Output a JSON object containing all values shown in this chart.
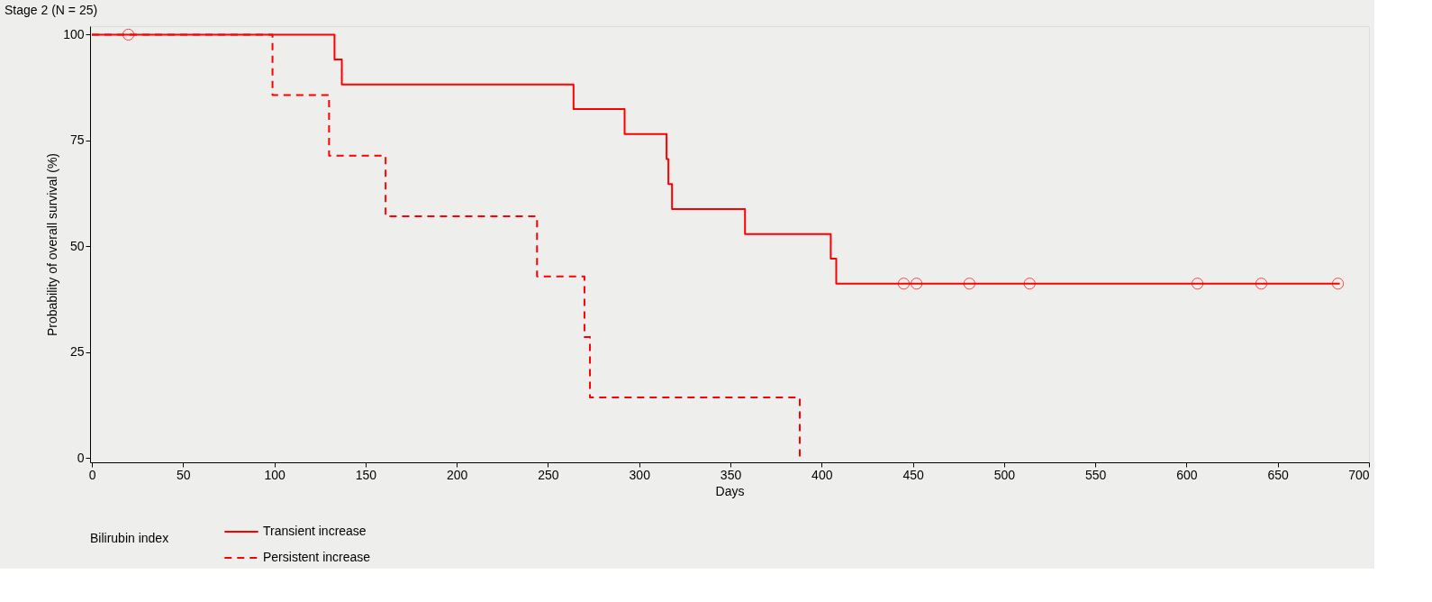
{
  "chart_data": {
    "type": "step",
    "title": "Stage 2 (N = 25)",
    "xlabel": "Days",
    "ylabel": "Probability of overall survival (%)",
    "legend_title": "Bilirubin index",
    "legend": "bottom",
    "grid": false,
    "xlim": [
      -1,
      700
    ],
    "xticks": [
      0,
      50,
      100,
      150,
      200,
      250,
      300,
      350,
      400,
      450,
      500,
      550,
      600,
      650,
      700
    ],
    "ylim": [
      -1,
      102
    ],
    "yticks": [
      0,
      25,
      50,
      75,
      100
    ],
    "series": [
      {
        "name": "Transient increase",
        "color": "#ff0000",
        "line_style": "solid",
        "x": [
          0,
          133,
          137,
          264,
          292,
          315,
          316,
          318,
          358,
          405,
          408,
          684
        ],
        "values": [
          100,
          94.1,
          88.2,
          82.4,
          76.5,
          70.6,
          64.7,
          58.8,
          52.9,
          47.1,
          41.2,
          41.2
        ]
      },
      {
        "name": "Persistent increase",
        "color": "#ff0000",
        "line_style": "dashed",
        "x": [
          0,
          99,
          130,
          161,
          244,
          270,
          273,
          388
        ],
        "values": [
          100,
          85.7,
          71.4,
          57.1,
          42.9,
          28.6,
          14.3,
          0
        ]
      },
      {
        "type": "scatter",
        "color": "#ff0000",
        "marker": "circle",
        "x": [
          20,
          445,
          452,
          481,
          514,
          606,
          641,
          683
        ],
        "values": [
          100,
          41.2,
          41.2,
          41.2,
          41.2,
          41.2,
          41.2,
          41.2
        ]
      }
    ]
  }
}
